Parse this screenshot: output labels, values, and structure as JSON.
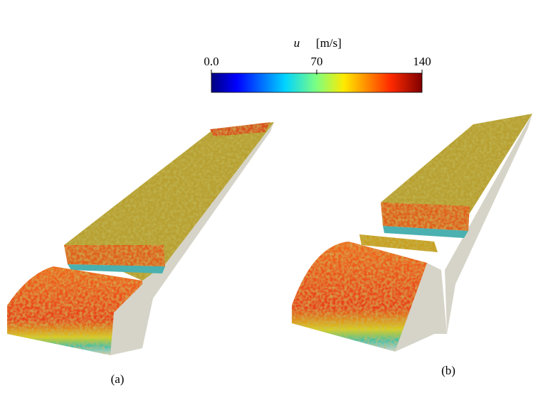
{
  "colorbar": {
    "variable": "u",
    "unit": "[m/s]",
    "lim": [
      0,
      140
    ],
    "ticks": [
      {
        "value": 0,
        "label": "0.0"
      },
      70,
      140
    ]
  },
  "panels": [
    {
      "label": "(a)"
    },
    {
      "label": "(b)"
    }
  ]
}
